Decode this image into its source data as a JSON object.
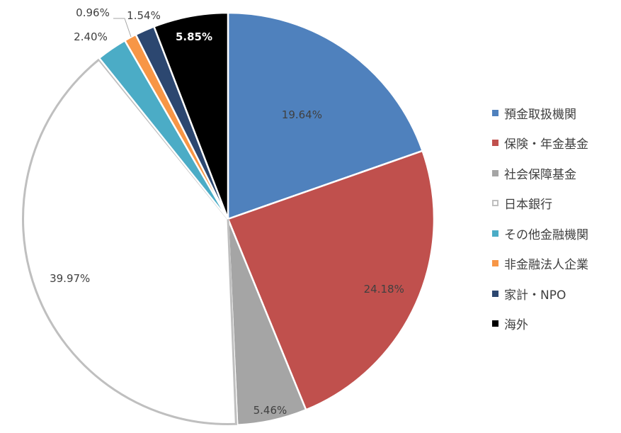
{
  "chart_data": {
    "type": "pie",
    "title": "",
    "series": [
      {
        "name": "預金取扱機関",
        "value": 19.64,
        "label": "19.64%",
        "color": "#4f81bd"
      },
      {
        "name": "保険・年金基金",
        "value": 24.18,
        "label": "24.18%",
        "color": "#c0504d"
      },
      {
        "name": "社会保障基金",
        "value": 5.46,
        "label": "5.46%",
        "color": "#a5a5a5"
      },
      {
        "name": "日本銀行",
        "value": 39.97,
        "label": "39.97%",
        "color": "#ffffff",
        "outline": "#bfbfbf"
      },
      {
        "name": "その他金融機関",
        "value": 2.4,
        "label": "2.40%",
        "color": "#4bacc6"
      },
      {
        "name": "非金融法人企業",
        "value": 0.96,
        "label": "0.96%",
        "color": "#f79646"
      },
      {
        "name": "家計・NPO",
        "value": 1.54,
        "label": "1.54%",
        "color": "#2c4770"
      },
      {
        "name": "海外",
        "value": 5.85,
        "label": "5.85%",
        "color": "#000000"
      }
    ],
    "start_angle": "12 o'clock",
    "direction": "clockwise",
    "legend_position": "right"
  }
}
